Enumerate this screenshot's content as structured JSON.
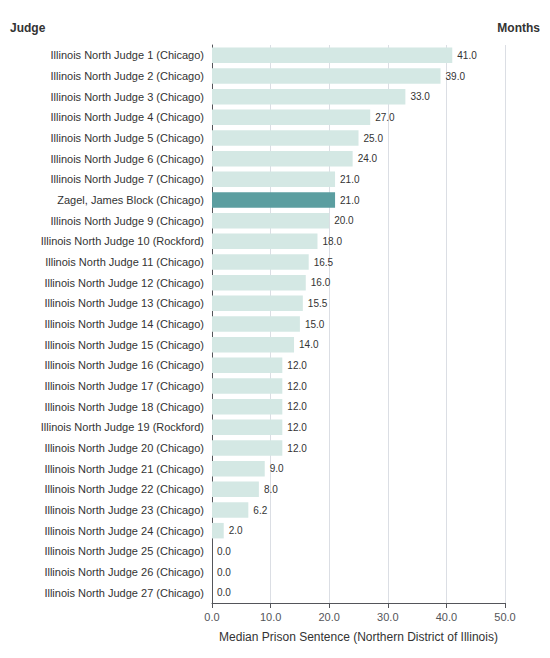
{
  "chart_data": {
    "type": "bar",
    "orientation": "horizontal",
    "xlabel": "Median Prison Sentence (Northern District of Illinois)",
    "ylabel": "Judge",
    "annotations": [
      "Months"
    ],
    "categories": [
      "Illinois North Judge 1 (Chicago)",
      "Illinois North Judge 2 (Chicago)",
      "Illinois North Judge 3 (Chicago)",
      "Illinois North Judge 4 (Chicago)",
      "Illinois North Judge 5 (Chicago)",
      "Illinois North Judge 6 (Chicago)",
      "Illinois North Judge 7 (Chicago)",
      "Zagel, James Block (Chicago)",
      "Illinois North Judge 9 (Chicago)",
      "Illinois North Judge 10 (Rockford)",
      "Illinois North Judge 11 (Chicago)",
      "Illinois North Judge 12 (Chicago)",
      "Illinois North Judge 13 (Chicago)",
      "Illinois North Judge 14 (Chicago)",
      "Illinois North Judge 15 (Chicago)",
      "Illinois North Judge 16 (Chicago)",
      "Illinois North Judge 17 (Chicago)",
      "Illinois North Judge 18 (Chicago)",
      "Illinois North Judge 19 (Rockford)",
      "Illinois North Judge 20 (Chicago)",
      "Illinois North Judge 21 (Chicago)",
      "Illinois North Judge 22 (Chicago)",
      "Illinois North Judge 23 (Chicago)",
      "Illinois North Judge 24 (Chicago)",
      "Illinois North Judge 25 (Chicago)",
      "Illinois North Judge 26 (Chicago)",
      "Illinois North Judge 27 (Chicago)"
    ],
    "values": [
      41.0,
      39.0,
      33.0,
      27.0,
      25.0,
      24.0,
      21.0,
      21.0,
      20.0,
      18.0,
      16.5,
      16.0,
      15.5,
      15.0,
      14.0,
      12.0,
      12.0,
      12.0,
      12.0,
      12.0,
      9.0,
      8.0,
      6.2,
      2.0,
      0.0,
      0.0,
      0.0
    ],
    "value_labels": [
      "41.0",
      "39.0",
      "33.0",
      "27.0",
      "25.0",
      "24.0",
      "21.0",
      "21.0",
      "20.0",
      "18.0",
      "16.5",
      "16.0",
      "15.5",
      "15.0",
      "14.0",
      "12.0",
      "12.0",
      "12.0",
      "12.0",
      "12.0",
      "9.0",
      "8.0",
      "6.2",
      "2.0",
      "0.0",
      "0.0",
      "0.0"
    ],
    "data_labels": true,
    "colors": [
      "#d4e8e4",
      "#d4e8e4",
      "#d4e8e4",
      "#d4e8e4",
      "#d4e8e4",
      "#d4e8e4",
      "#d4e8e4",
      "#5b9ea0",
      "#d4e8e4",
      "#d4e8e4",
      "#d4e8e4",
      "#d4e8e4",
      "#d4e8e4",
      "#d4e8e4",
      "#d4e8e4",
      "#d4e8e4",
      "#d4e8e4",
      "#d4e8e4",
      "#d4e8e4",
      "#d4e8e4",
      "#d4e8e4",
      "#d4e8e4",
      "#d4e8e4",
      "#d4e8e4",
      "#d4e8e4",
      "#d4e8e4",
      "#d4e8e4"
    ],
    "xlim": [
      0,
      50.0
    ],
    "xticks": [
      {
        "value": 0,
        "label": "0.0"
      },
      {
        "value": 10,
        "label": "10.0"
      },
      {
        "value": 20,
        "label": "20.0"
      },
      {
        "value": 30,
        "label": "30.0"
      },
      {
        "value": 40,
        "label": "40.0"
      },
      {
        "value": 50,
        "label": "50.0"
      }
    ],
    "grid": true
  }
}
